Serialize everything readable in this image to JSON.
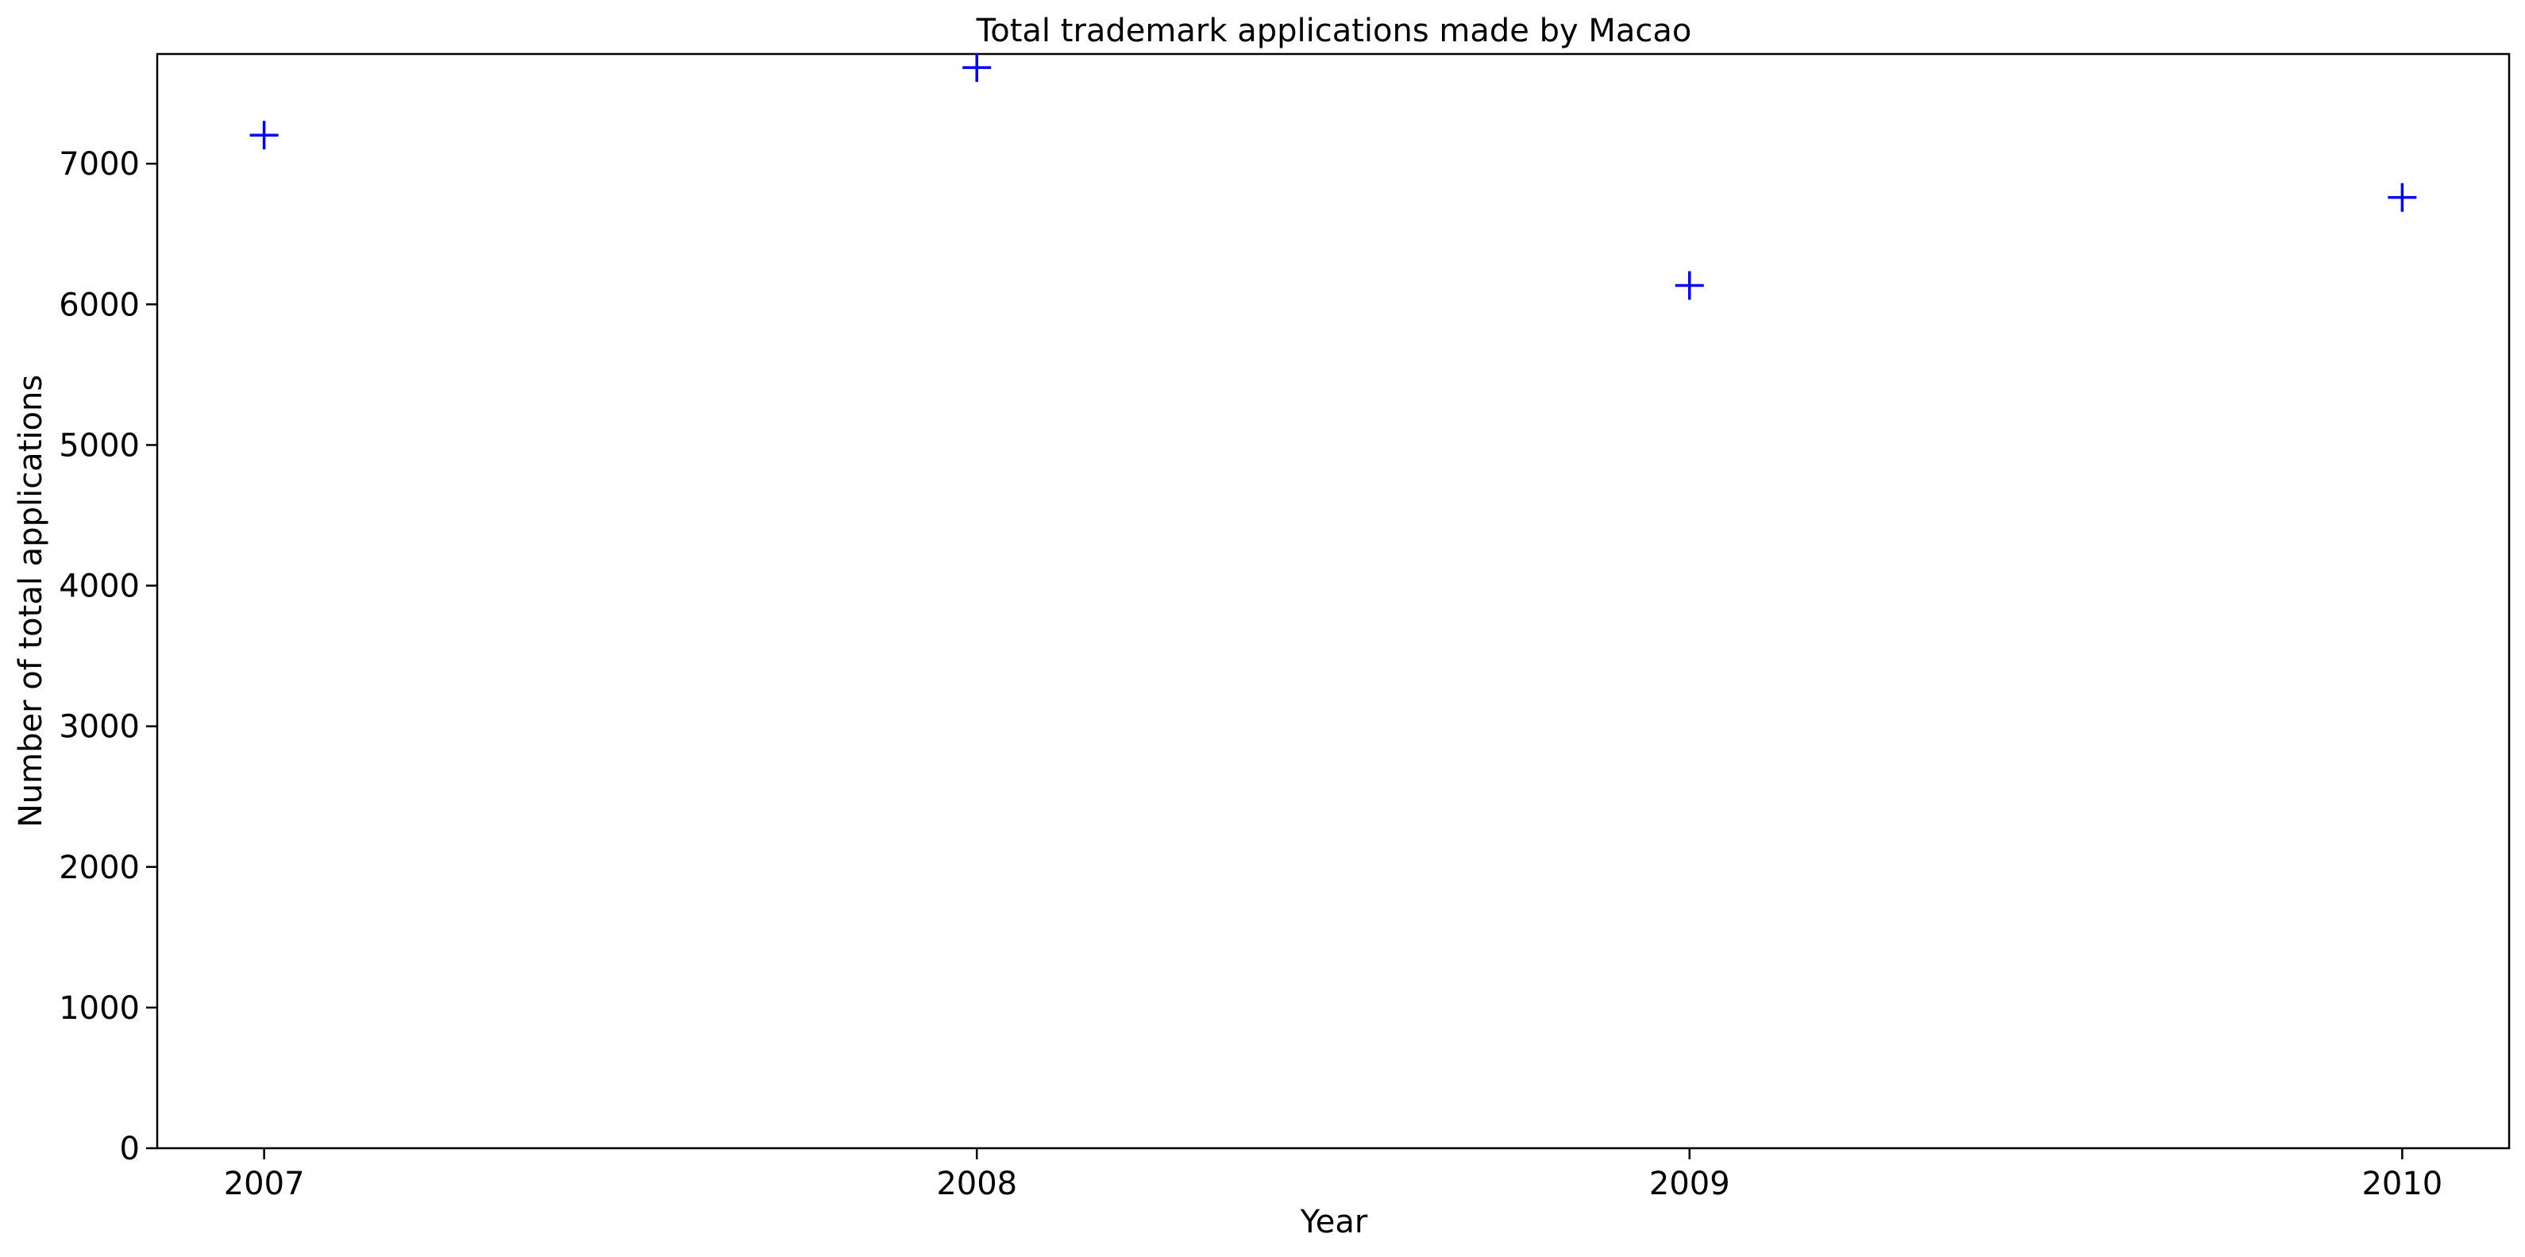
{
  "chart_data": {
    "type": "scatter",
    "title": "Total trademark applications made by Macao",
    "xlabel": "Year",
    "ylabel": "Number of total applications",
    "x_ticks": [
      "2007",
      "2008",
      "2009",
      "2010"
    ],
    "y_ticks": [
      "0",
      "1000",
      "2000",
      "3000",
      "4000",
      "5000",
      "6000",
      "7000"
    ],
    "x": [
      2007,
      2008,
      2009,
      2010
    ],
    "y": [
      7203,
      7683,
      6134,
      6760
    ],
    "xlim": [
      2006.85,
      2010.15
    ],
    "ylim": [
      0,
      7780
    ],
    "marker": "+",
    "marker_color": "#0000ff",
    "grid": false,
    "legend": "none"
  }
}
